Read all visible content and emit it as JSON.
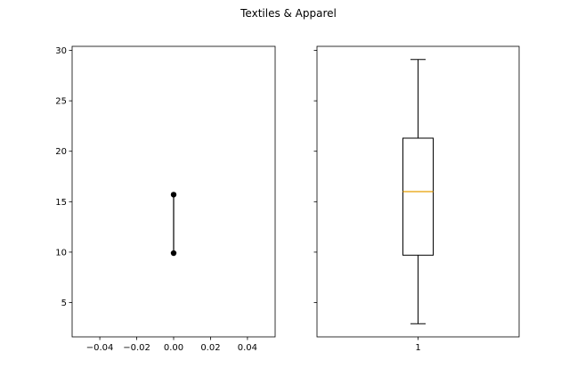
{
  "chart_data": {
    "title": "Textiles & Apparel",
    "shared_y": {
      "ylim": [
        1.6,
        30.4
      ],
      "ticks": [
        5,
        10,
        15,
        20,
        25,
        30
      ],
      "tick_labels": [
        "5",
        "10",
        "15",
        "20",
        "25",
        "30"
      ]
    },
    "charts": [
      {
        "type": "line",
        "markers": "circle",
        "color": "#000000",
        "x": [
          0.0,
          0.0
        ],
        "y": [
          9.9,
          15.7
        ],
        "xlim": [
          -0.055,
          0.055
        ],
        "xticks": [
          -0.04,
          -0.02,
          0.0,
          0.02,
          0.04
        ],
        "xtick_labels": [
          "−0.04",
          "−0.02",
          "0.00",
          "0.02",
          "0.04"
        ],
        "grid": false
      },
      {
        "type": "boxplot",
        "categories": [
          "1"
        ],
        "stats": {
          "whislo": 2.9,
          "q1": 9.7,
          "median": 16.0,
          "q3": 21.3,
          "whishi": 29.1
        },
        "median_color": "#e69f00",
        "box_color": "#000000",
        "xlim": [
          0.5,
          1.5
        ],
        "grid": false
      }
    ]
  }
}
